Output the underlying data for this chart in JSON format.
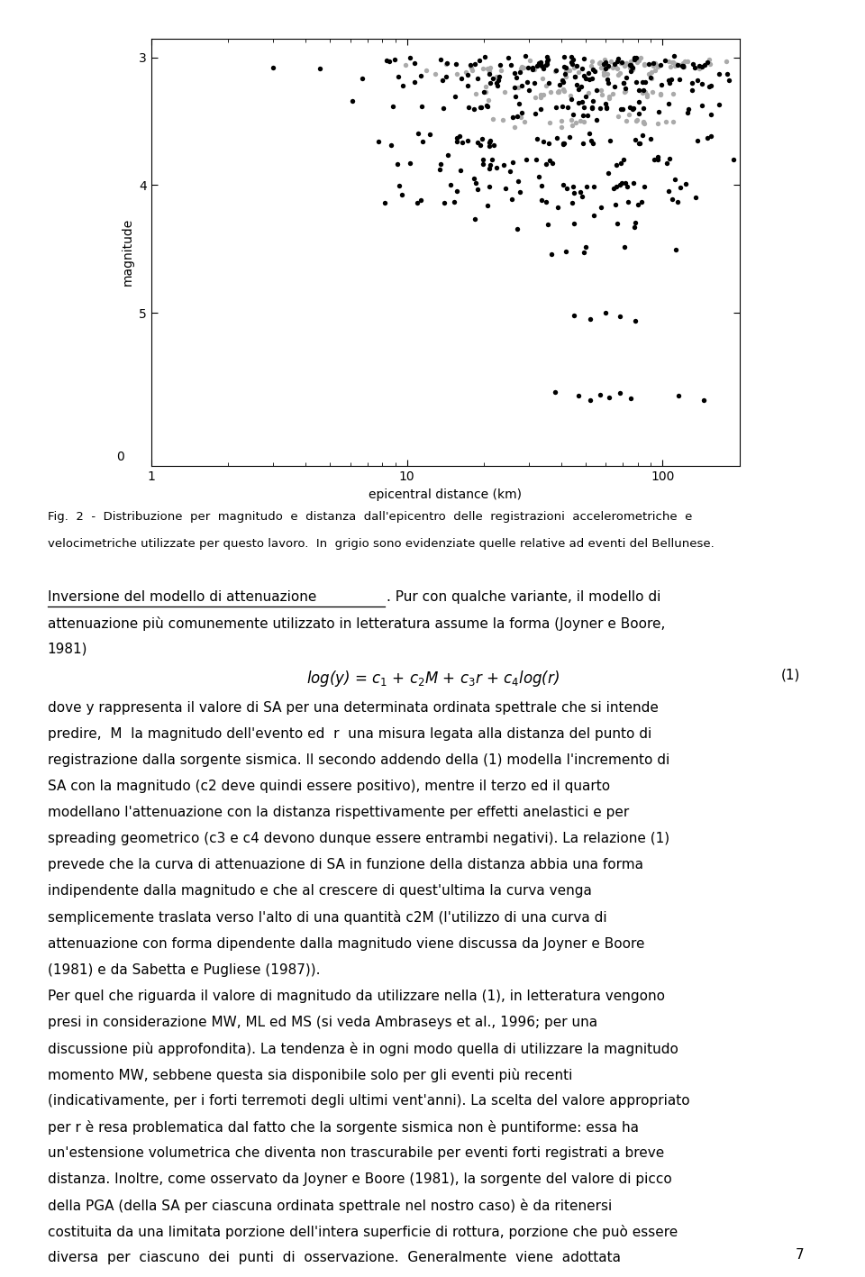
{
  "title": "",
  "xlabel": "epicentral distance (km)",
  "ylabel": "magnitude",
  "xlim_log": [
    1,
    200
  ],
  "ylim_top": 6.2,
  "ylim_bottom": 2.85,
  "yticks": [
    3,
    4,
    5
  ],
  "xtick_labels": [
    "1",
    "10",
    "100"
  ],
  "xtick_vals": [
    1,
    10,
    100
  ],
  "marker_color_black": "#000000",
  "marker_color_grey": "#aaaaaa",
  "background_color": "#ffffff",
  "seed": 42,
  "page_number": "7"
}
